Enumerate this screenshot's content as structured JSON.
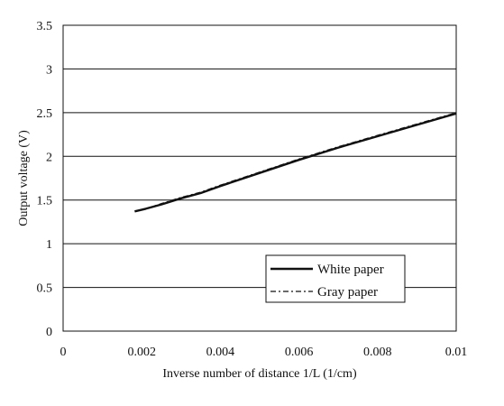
{
  "chart_data": {
    "type": "line",
    "title": "",
    "xlabel": "Inverse number of distance 1/L (1/cm)",
    "ylabel": "Output voltage (V)",
    "xlim": [
      0,
      0.01
    ],
    "ylim": [
      0,
      3.5
    ],
    "x_ticks": [
      "0",
      "0.002",
      "0.004",
      "0.006",
      "0.008",
      "0.01"
    ],
    "y_ticks": [
      "0",
      "0.5",
      "1",
      "1.5",
      "2",
      "2.5",
      "3",
      "3.5"
    ],
    "grid": "horizontal",
    "legend_position": "bottom-right",
    "series": [
      {
        "name": "White paper",
        "style": "solid",
        "color": "#111111",
        "x": [
          0.00182,
          0.0021,
          0.0025,
          0.003,
          0.0035,
          0.004,
          0.005,
          0.006,
          0.007,
          0.008,
          0.009,
          0.01
        ],
        "y": [
          1.37,
          1.4,
          1.45,
          1.52,
          1.58,
          1.66,
          1.81,
          1.96,
          2.1,
          2.23,
          2.36,
          2.49
        ]
      },
      {
        "name": "Gray paper",
        "style": "dash-dot",
        "color": "#111111",
        "x": [
          0.00182,
          0.0021,
          0.0025,
          0.003,
          0.0035,
          0.004,
          0.005,
          0.006,
          0.007,
          0.008,
          0.009,
          0.01
        ],
        "y": [
          1.37,
          1.4,
          1.46,
          1.53,
          1.59,
          1.67,
          1.82,
          1.97,
          2.11,
          2.24,
          2.37,
          2.5
        ]
      }
    ]
  }
}
